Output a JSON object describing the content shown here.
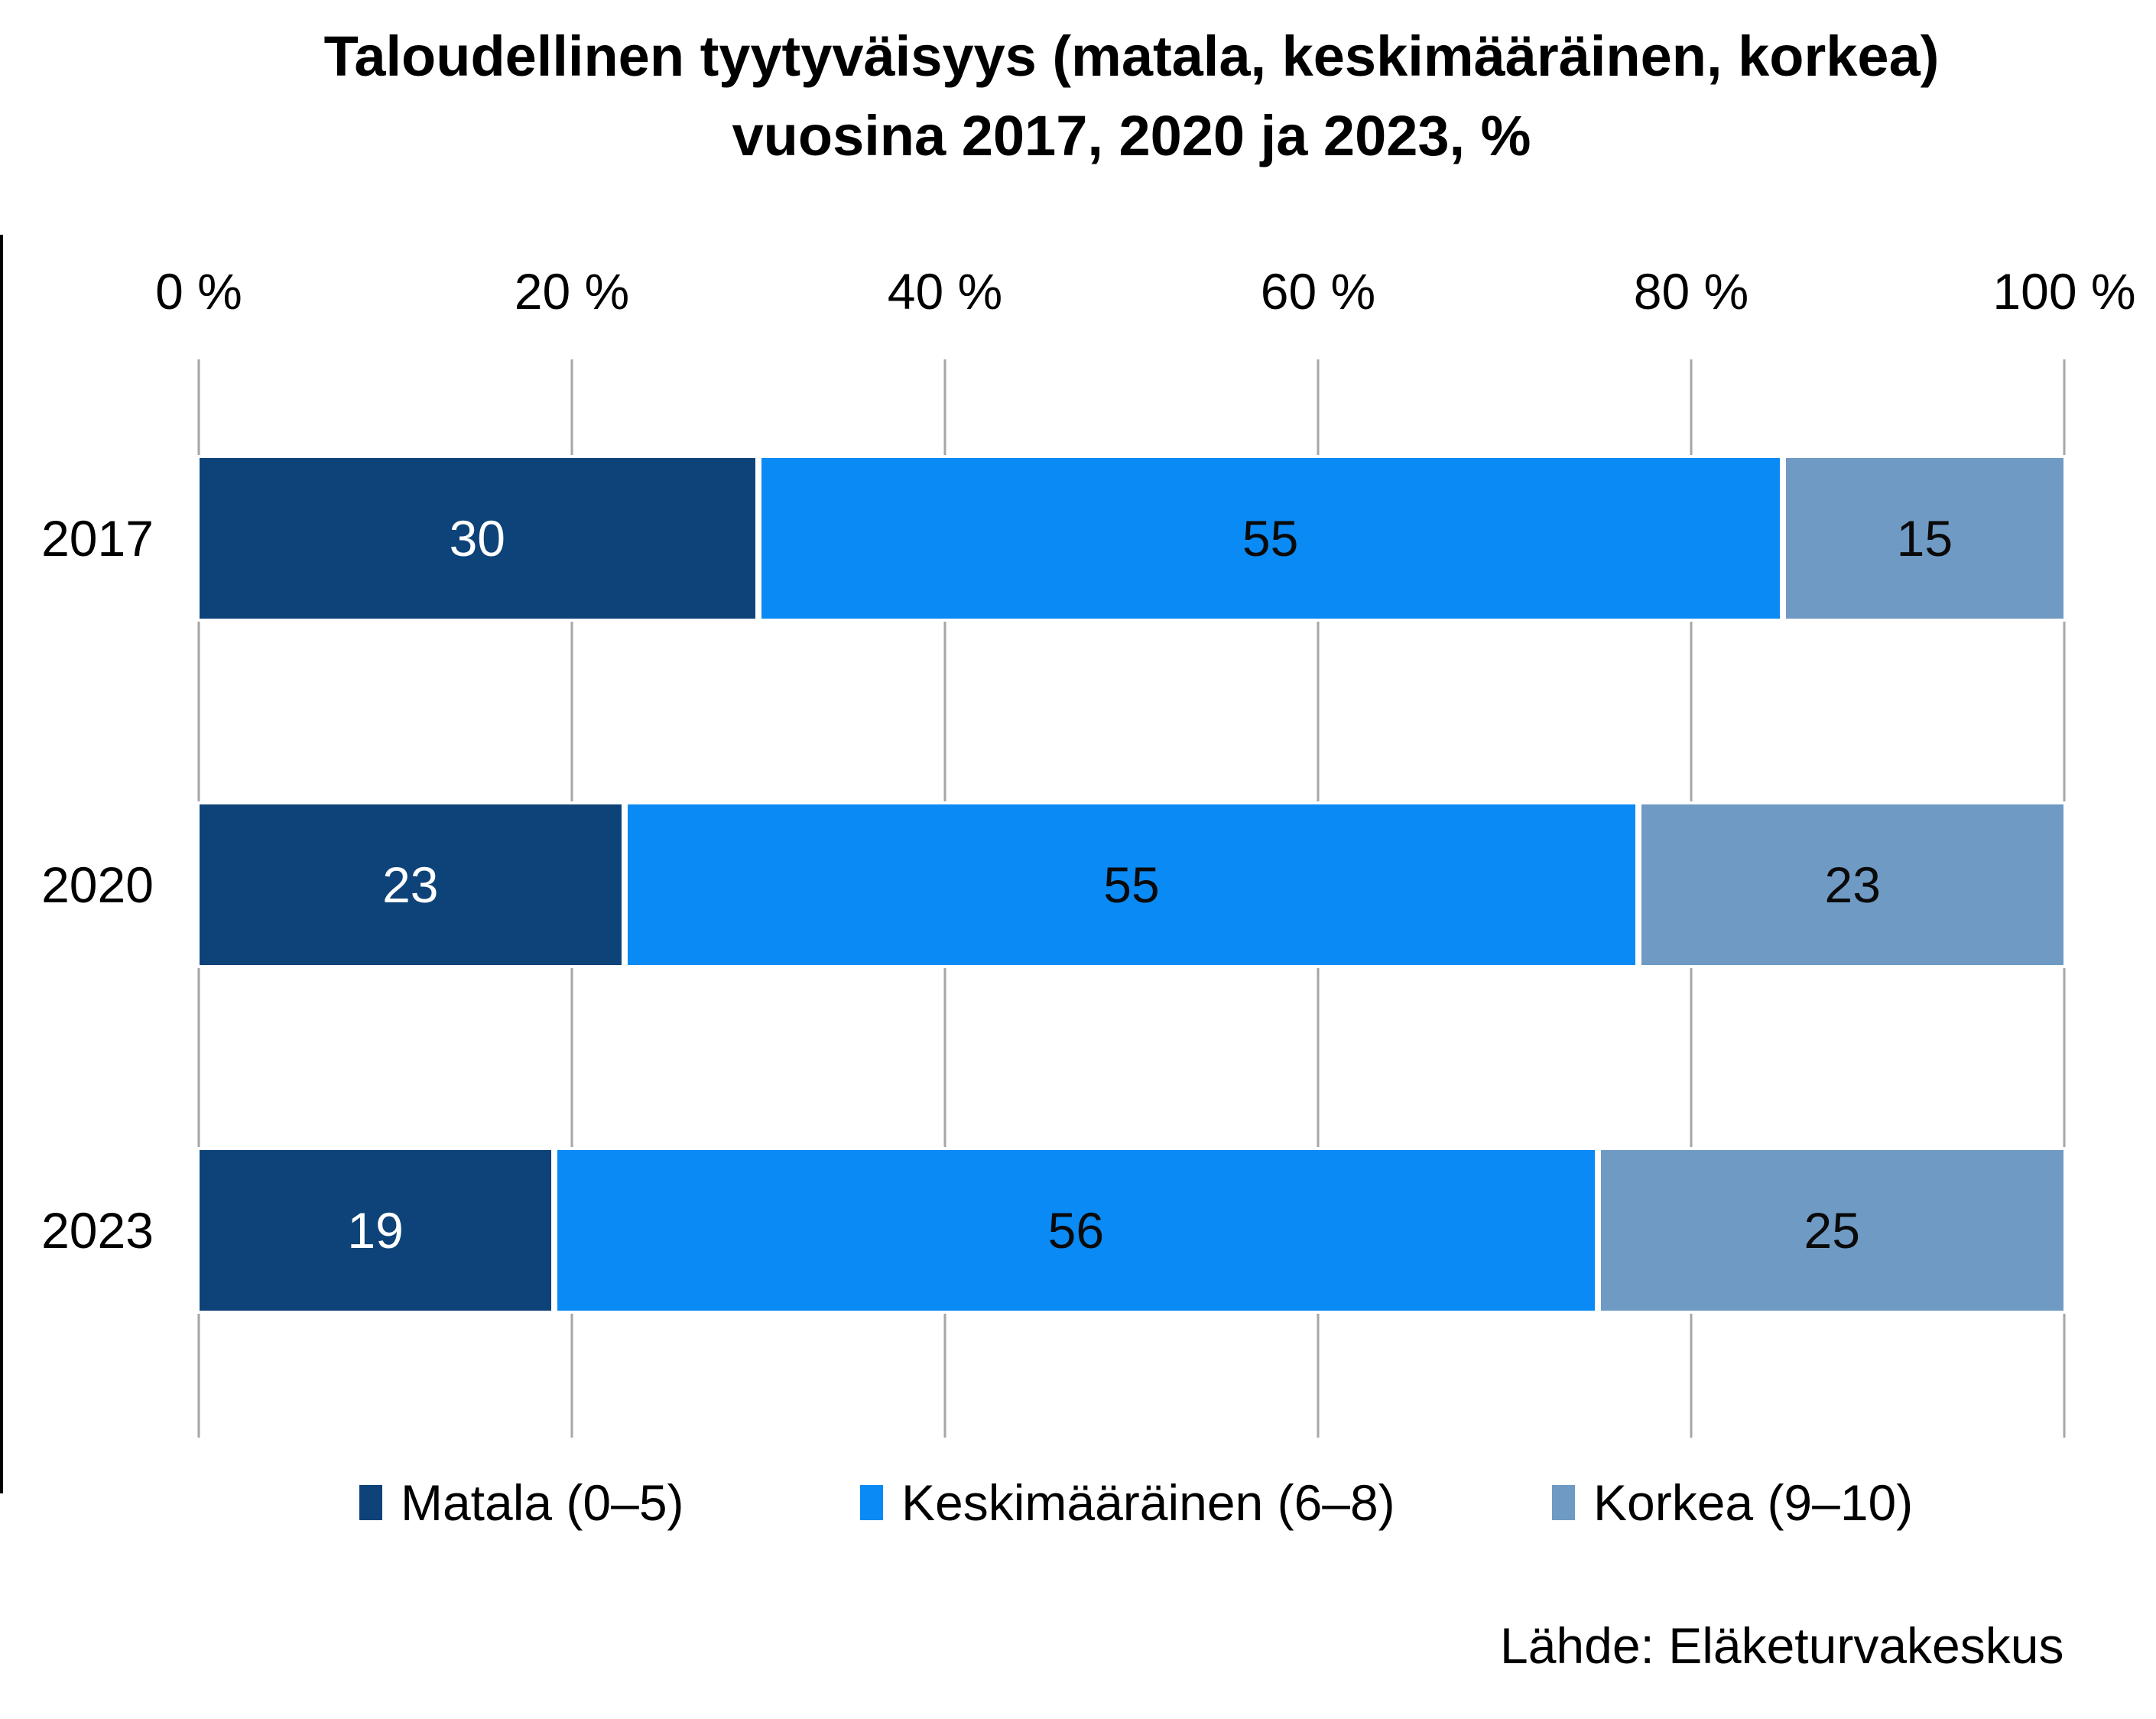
{
  "chart_data": {
    "type": "bar",
    "variant": "horizontal-stacked",
    "title_line1": "Taloudellinen tyytyväisyys (matala, keskimääräinen, korkea)",
    "title_line2": "vuosina 2017, 2020 ja 2023, %",
    "categories": [
      "2017",
      "2020",
      "2023"
    ],
    "series": [
      {
        "name": "Matala (0–5)",
        "color": "#0D4378",
        "label_color": "#FFFFFF",
        "values": [
          30,
          23,
          19
        ]
      },
      {
        "name": "Keskimääräinen (6–8)",
        "color": "#0A8AF4",
        "label_color": "#0A0A0A",
        "values": [
          55,
          55,
          56
        ]
      },
      {
        "name": "Korkea (9–10)",
        "color": "#6F9AC3",
        "label_color": "#0A0A0A",
        "values": [
          15,
          23,
          25
        ]
      }
    ],
    "x_axis": {
      "ticks": [
        "0 %",
        "20 %",
        "40 %",
        "60 %",
        "80 %",
        "100 %"
      ],
      "min": 0,
      "max": 100,
      "position": "top",
      "grid": true
    },
    "legend_position": "bottom",
    "gridline_color": "#A6A6A6",
    "background": "#FFFFFF",
    "source": "Lähde: Eläketurvakeskus"
  }
}
